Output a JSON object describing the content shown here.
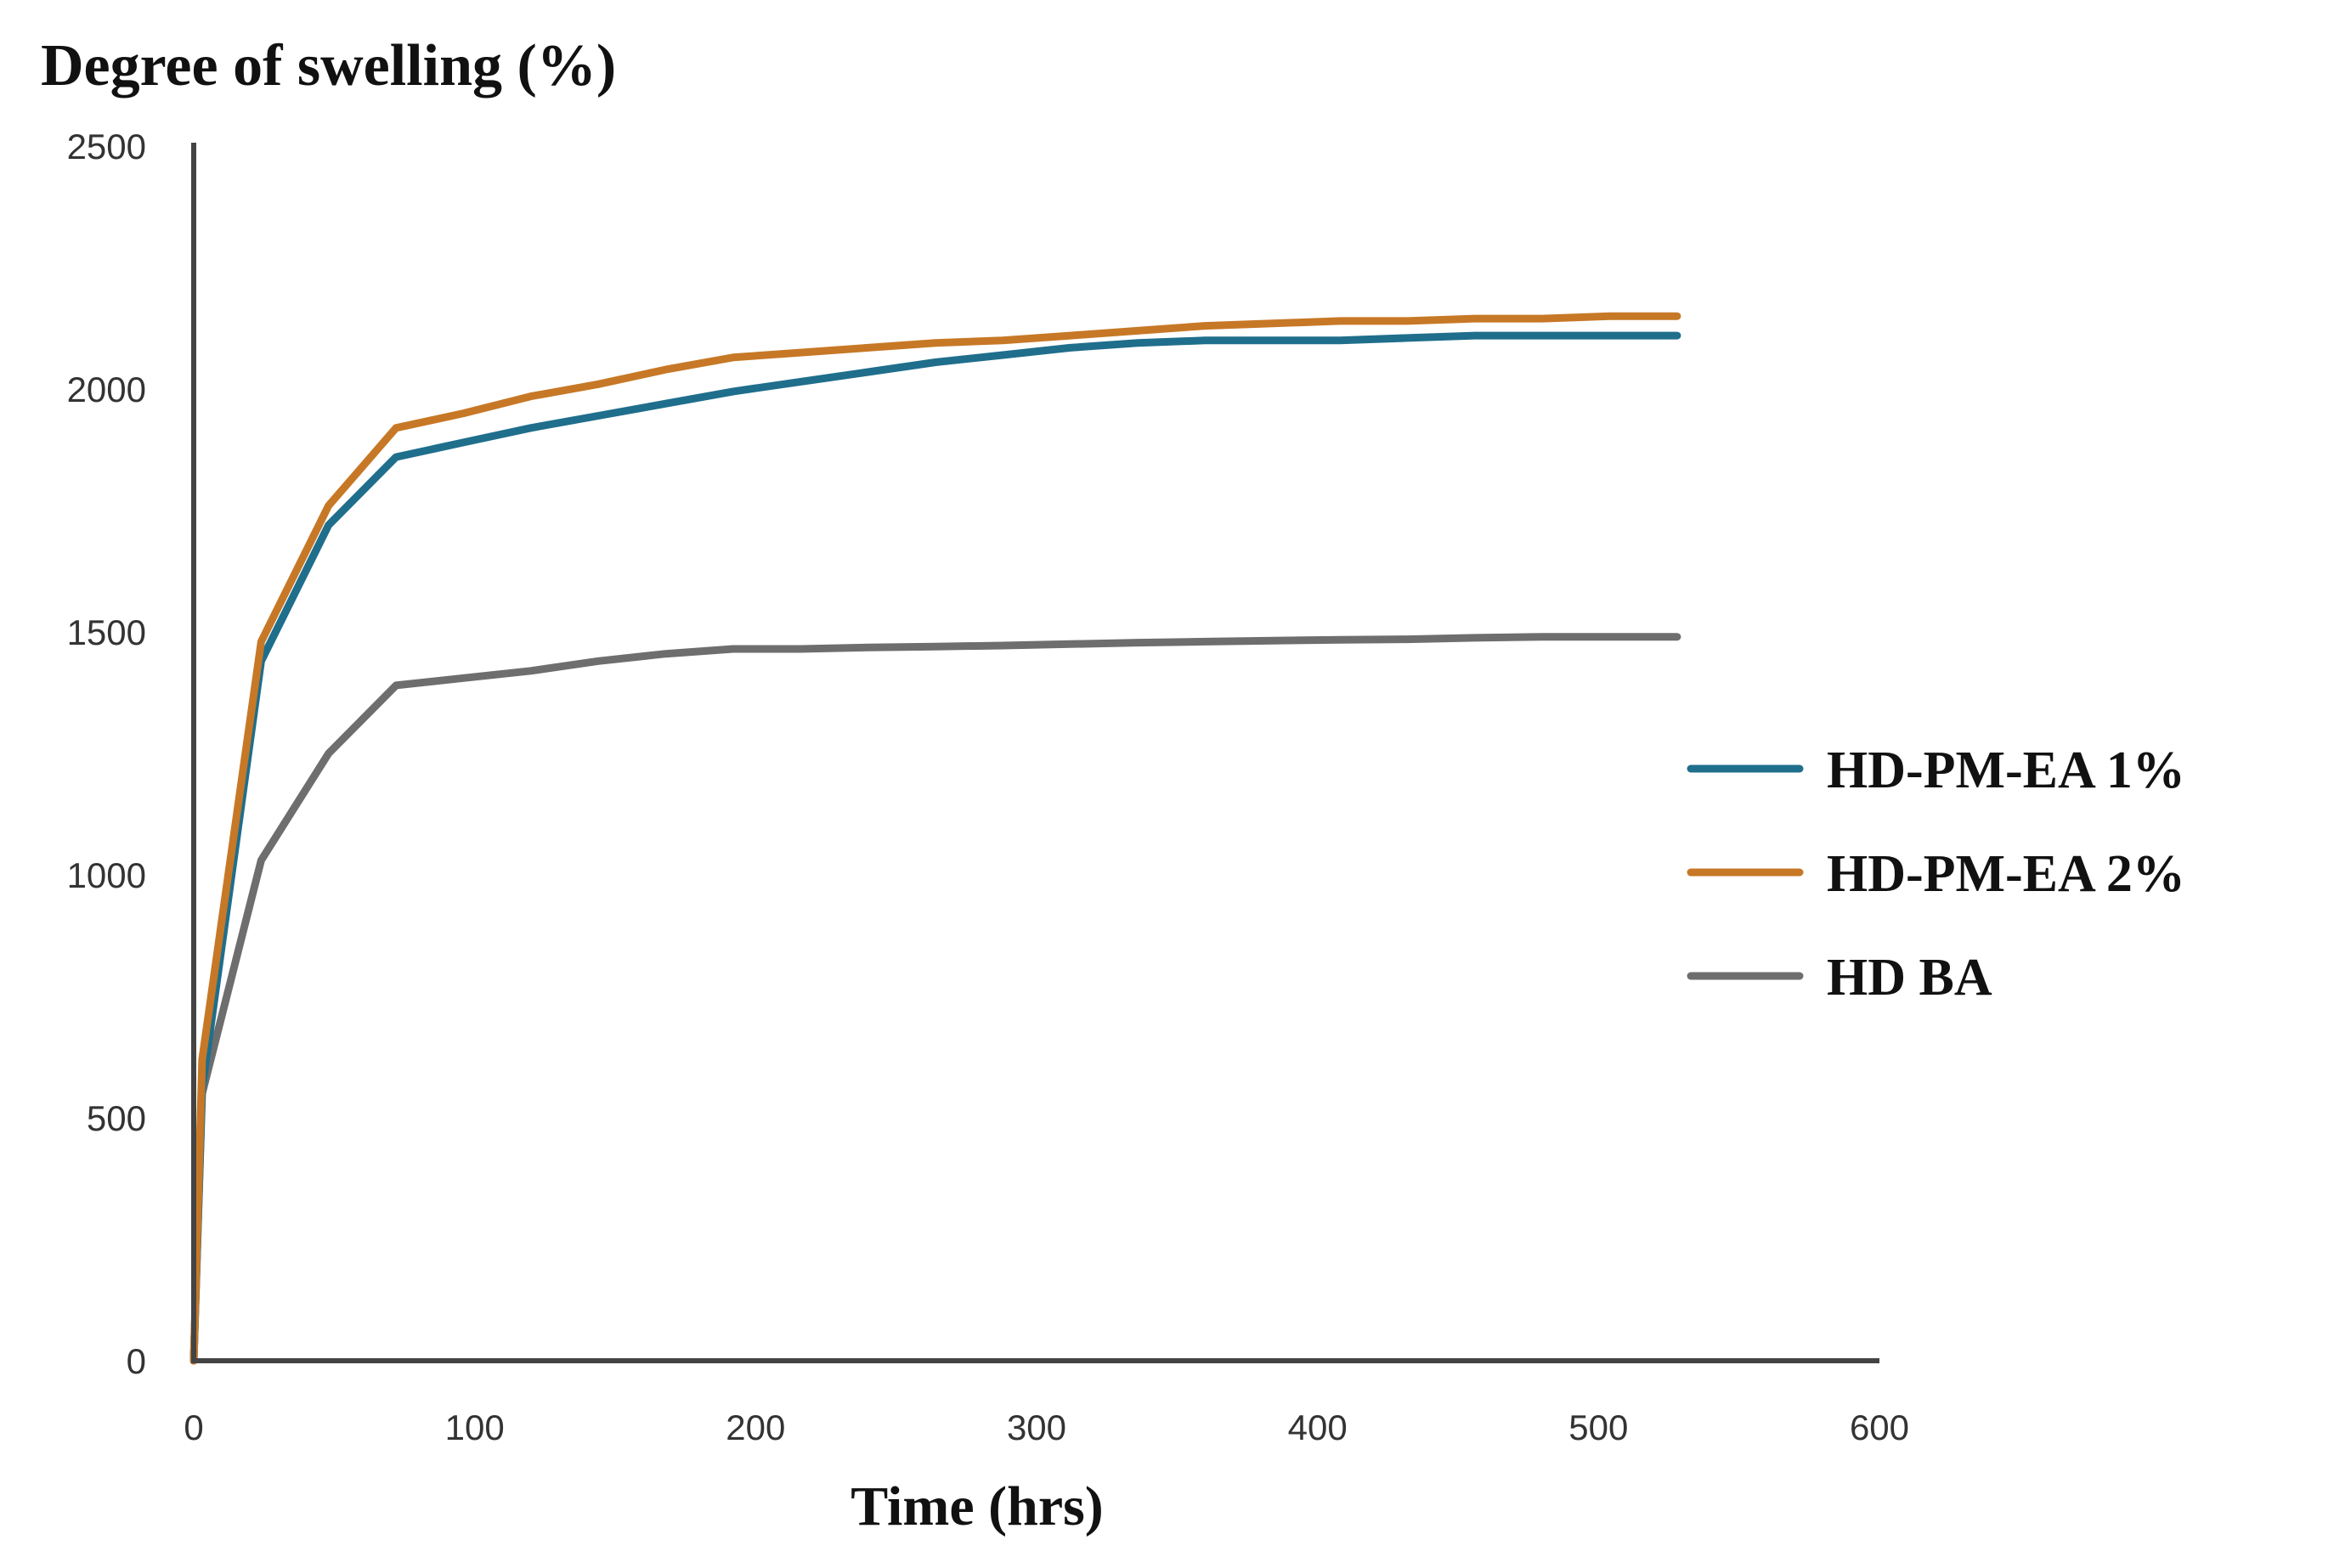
{
  "chart_data": {
    "type": "line",
    "title": "",
    "ylabel": "Degree of swelling (%)",
    "xlabel": "Time (hrs)",
    "xlim": [
      0,
      600
    ],
    "ylim": [
      0,
      2500
    ],
    "xticks": [
      0,
      100,
      200,
      300,
      400,
      500,
      600
    ],
    "yticks": [
      0,
      500,
      1000,
      1500,
      2000,
      2500
    ],
    "grid": false,
    "legend_position": "right",
    "series": [
      {
        "name": "HD-PM-EA 1%",
        "color": "#1f6e8c",
        "x": [
          0,
          3,
          24,
          48,
          72,
          96,
          120,
          144,
          168,
          192,
          216,
          240,
          264,
          288,
          312,
          336,
          360,
          384,
          408,
          432,
          456,
          480,
          504,
          528
        ],
        "y": [
          0,
          560,
          1440,
          1720,
          1860,
          1890,
          1920,
          1945,
          1970,
          1995,
          2015,
          2035,
          2055,
          2070,
          2085,
          2095,
          2100,
          2100,
          2100,
          2105,
          2110,
          2110,
          2110,
          2110
        ]
      },
      {
        "name": "HD-PM-EA 2%",
        "color": "#c77826",
        "x": [
          0,
          3,
          24,
          48,
          72,
          96,
          120,
          144,
          168,
          192,
          216,
          240,
          264,
          288,
          312,
          336,
          360,
          384,
          408,
          432,
          456,
          480,
          504,
          528
        ],
        "y": [
          0,
          620,
          1480,
          1760,
          1920,
          1950,
          1985,
          2010,
          2040,
          2065,
          2075,
          2085,
          2095,
          2100,
          2110,
          2120,
          2130,
          2135,
          2140,
          2140,
          2145,
          2145,
          2150,
          2150
        ]
      },
      {
        "name": "HD BA",
        "color": "#6e6e6e",
        "x": [
          0,
          3,
          24,
          48,
          72,
          96,
          120,
          144,
          168,
          192,
          216,
          240,
          264,
          288,
          312,
          336,
          360,
          384,
          408,
          432,
          456,
          480,
          504,
          528
        ],
        "y": [
          0,
          550,
          1030,
          1250,
          1390,
          1405,
          1420,
          1440,
          1455,
          1465,
          1465,
          1468,
          1470,
          1472,
          1475,
          1478,
          1480,
          1482,
          1484,
          1485,
          1488,
          1490,
          1490,
          1490
        ]
      }
    ]
  }
}
